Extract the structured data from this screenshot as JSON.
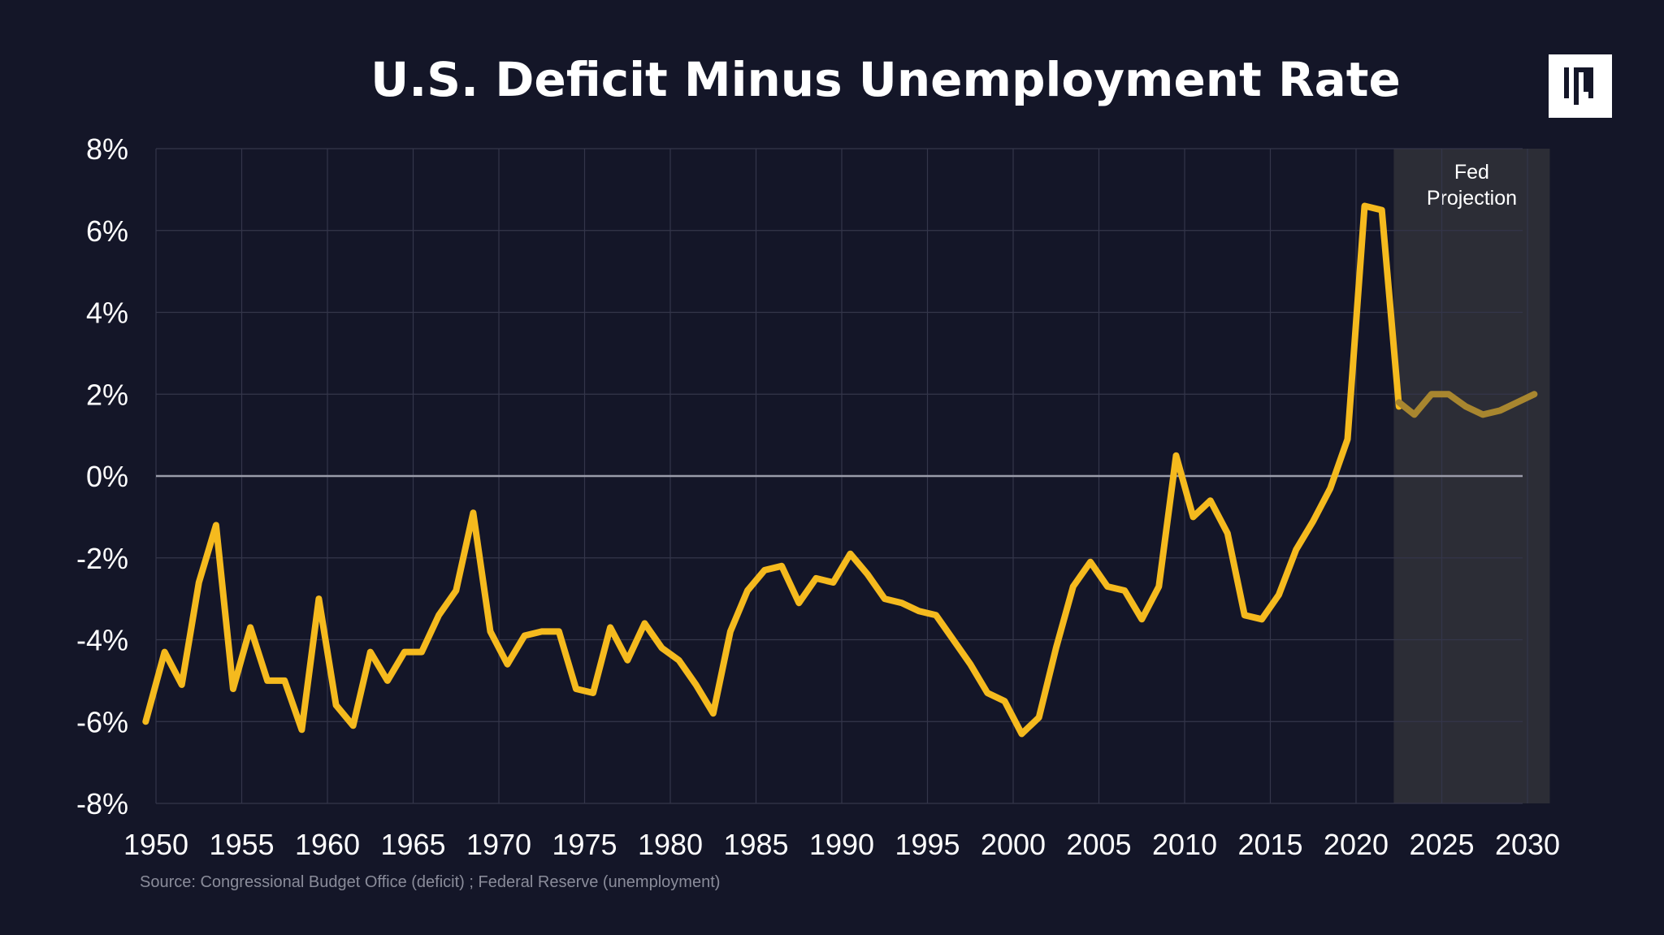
{
  "logo": {
    "name": "logo-mark",
    "colors": {
      "background": "#ffffff",
      "mark": "#141628"
    }
  },
  "colors": {
    "background": "#141628",
    "line_actual": "#F5BA1E",
    "line_projection": "#A8862F",
    "projection_shade": "#2c2d36",
    "gridline": "#34364a",
    "zero_line": "#9a9caa"
  },
  "chart_data": {
    "type": "line",
    "title": "U.S. Deficit Minus Unemployment Rate",
    "xlim": [
      1950,
      2030
    ],
    "ylim": [
      -8,
      8
    ],
    "yticks": [
      8,
      6,
      4,
      2,
      0,
      -2,
      -4,
      -6,
      -8
    ],
    "ytick_labels": [
      "8%",
      "6%",
      "4%",
      "2%",
      "0%",
      "-2%",
      "-4%",
      "-6%",
      "-8%"
    ],
    "xticks": [
      1950,
      1955,
      1960,
      1965,
      1970,
      1975,
      1980,
      1985,
      1990,
      1995,
      2000,
      2005,
      2010,
      2015,
      2020,
      2025,
      2030
    ],
    "xtick_labels": [
      "1950",
      "1955",
      "1960",
      "1965",
      "1970",
      "1975",
      "1980",
      "1985",
      "1990",
      "1995",
      "2000",
      "2005",
      "2010",
      "2015",
      "2020",
      "2025",
      "2030"
    ],
    "grid": true,
    "projection_region": {
      "start": 2022.2,
      "end": 2031.3,
      "label_line1": "Fed",
      "label_line2": "Projection"
    },
    "series": [
      {
        "x": [
          1949.4,
          1950.5,
          1951.5,
          1952.5,
          1953.5,
          1954.5,
          1955.5,
          1956.5,
          1957.5,
          1958.5,
          1959.5,
          1960.5,
          1961.5,
          1962.5,
          1963.5,
          1964.5,
          1965.5,
          1966.5,
          1967.5,
          1968.5,
          1969.5,
          1970.5,
          1971.5,
          1972.5,
          1973.5,
          1974.5,
          1975.5,
          1976.5,
          1977.5,
          1978.5,
          1979.5,
          1980.5,
          1981.5,
          1982.5,
          1983.5,
          1984.5,
          1985.5,
          1986.5,
          1987.5,
          1988.5,
          1989.5,
          1990.5,
          1991.5,
          1992.5,
          1993.5,
          1994.5,
          1995.5,
          1996.5,
          1997.5,
          1998.5,
          1999.5,
          2000.5,
          2001.5,
          2002.5,
          2003.5,
          2004.5,
          2005.5,
          2006.5,
          2007.5,
          2008.5,
          2009.5,
          2010.5,
          2011.5,
          2012.5,
          2013.5,
          2014.5,
          2015.5,
          2016.5,
          2017.5,
          2018.5,
          2019.5,
          2020.5,
          2021.5,
          2022.5
        ],
        "values": [
          -6.0,
          -4.3,
          -5.1,
          -2.6,
          -1.2,
          -5.2,
          -3.7,
          -5.0,
          -5.0,
          -6.2,
          -3.0,
          -5.6,
          -6.1,
          -4.3,
          -5.0,
          -4.3,
          -4.3,
          -3.4,
          -2.8,
          -0.9,
          -3.8,
          -4.6,
          -3.9,
          -3.8,
          -3.8,
          -5.2,
          -5.3,
          -3.7,
          -4.5,
          -3.6,
          -4.2,
          -4.5,
          -5.1,
          -5.8,
          -3.8,
          -2.8,
          -2.3,
          -2.2,
          -3.1,
          -2.5,
          -2.6,
          -1.9,
          -2.4,
          -3.0,
          -3.1,
          -3.3,
          -3.4,
          -4.0,
          -4.6,
          -5.3,
          -5.5,
          -6.3,
          -5.9,
          -4.2,
          -2.7,
          -2.1,
          -2.7,
          -2.8,
          -3.5,
          -2.7,
          0.5,
          -1.0,
          -0.6,
          -1.4,
          -3.4,
          -3.5,
          -2.9,
          -1.8,
          -1.1,
          -0.3,
          0.9,
          6.6,
          6.5,
          1.7
        ]
      },
      {
        "x": [
          2022.5,
          2023.4,
          2024.4,
          2025.4,
          2026.4,
          2027.4,
          2028.4,
          2029.4,
          2030.4
        ],
        "values": [
          1.8,
          1.5,
          2.0,
          2.0,
          1.7,
          1.5,
          1.6,
          1.8,
          2.0
        ]
      }
    ]
  },
  "source": "Source: Congressional Budget Office (deficit) ; Federal Reserve (unemployment)"
}
